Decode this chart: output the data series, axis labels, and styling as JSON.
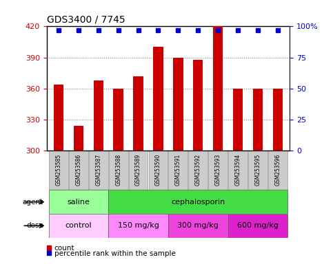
{
  "title": "GDS3400 / 7745",
  "samples": [
    "GSM253585",
    "GSM253586",
    "GSM253587",
    "GSM253588",
    "GSM253589",
    "GSM253590",
    "GSM253591",
    "GSM253592",
    "GSM253593",
    "GSM253594",
    "GSM253595",
    "GSM253596"
  ],
  "counts": [
    364,
    324,
    368,
    360,
    372,
    400,
    390,
    388,
    420,
    360,
    360,
    360
  ],
  "ymin": 300,
  "ymax": 420,
  "yticks": [
    300,
    330,
    360,
    390,
    420
  ],
  "right_ytick_pcts": [
    0,
    25,
    50,
    75,
    100
  ],
  "right_yticklabels": [
    "0",
    "25",
    "50",
    "75",
    "100%"
  ],
  "bar_color": "#cc0000",
  "dot_color": "#0000cc",
  "agent_row": [
    {
      "label": "saline",
      "start": 0,
      "end": 3,
      "color": "#99ff99"
    },
    {
      "label": "cephalosporin",
      "start": 3,
      "end": 12,
      "color": "#44dd44"
    }
  ],
  "dose_row": [
    {
      "label": "control",
      "start": 0,
      "end": 3,
      "color": "#ffccff"
    },
    {
      "label": "150 mg/kg",
      "start": 3,
      "end": 6,
      "color": "#ff88ff"
    },
    {
      "label": "300 mg/kg",
      "start": 6,
      "end": 9,
      "color": "#ee44dd"
    },
    {
      "label": "600 mg/kg",
      "start": 9,
      "end": 12,
      "color": "#dd22cc"
    }
  ],
  "legend_count_color": "#cc0000",
  "legend_dot_color": "#0000cc",
  "grid_color": "#888888",
  "tick_label_color_left": "#cc0000",
  "tick_label_color_right": "#0000cc",
  "bar_width": 0.5,
  "label_box_color": "#cccccc",
  "label_box_edge": "#999999"
}
